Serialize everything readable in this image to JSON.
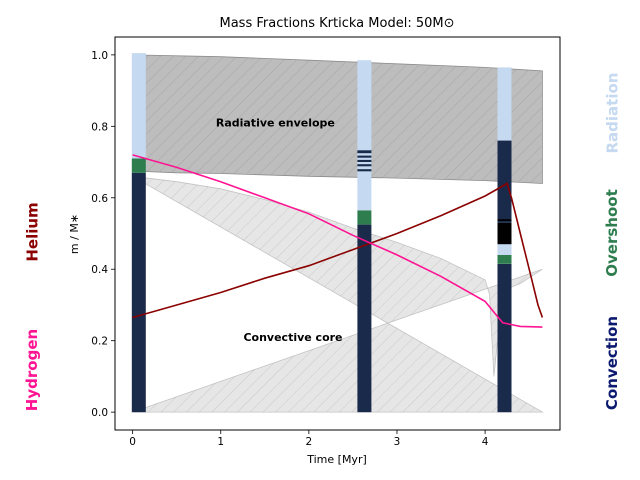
{
  "chart_data": {
    "type": "area",
    "title": "Mass Fractions Krticka Model: 50M⊙",
    "xlabel": "Time [Myr]",
    "ylabel": "m / M∗",
    "xlim": [
      -0.2,
      4.85
    ],
    "ylim": [
      -0.05,
      1.05
    ],
    "xticks": [
      "0",
      "1",
      "2",
      "3",
      "4"
    ],
    "yticks": [
      "0.0",
      "0.2",
      "0.4",
      "0.6",
      "0.8",
      "1.0"
    ],
    "grid": false,
    "region_labels": [
      "Radiative envelope",
      "Convective core"
    ],
    "side_labels": {
      "left": [
        "Helium",
        "Hydrogen"
      ],
      "right": [
        "Radiation",
        "Overshoot",
        "Convection"
      ]
    },
    "colors": {
      "helium": "#8b0000",
      "hydrogen": "#ff1493",
      "radiation": "#c5d9f1",
      "overshoot": "#2e7d4f",
      "convection": "#1a2a4a",
      "envelope_fill": "#bdbdbd",
      "core_fill": "#e6e6e6"
    },
    "envelope_top": {
      "x": [
        0.0,
        1.0,
        2.0,
        3.0,
        4.0,
        4.65
      ],
      "y": [
        1.0,
        0.995,
        0.985,
        0.975,
        0.965,
        0.955
      ]
    },
    "envelope_bottom": {
      "x": [
        0.0,
        0.5,
        1.0,
        2.0,
        3.0,
        4.0,
        4.65
      ],
      "y": [
        0.675,
        0.67,
        0.668,
        0.66,
        0.655,
        0.648,
        0.64
      ]
    },
    "core_boundary": {
      "x": [
        0.0,
        0.5,
        1.0,
        1.5,
        2.0,
        2.5,
        3.0,
        3.5,
        4.0,
        4.05,
        4.1,
        4.2,
        4.4,
        4.65
      ],
      "y": [
        0.66,
        0.645,
        0.625,
        0.595,
        0.56,
        0.515,
        0.475,
        0.43,
        0.37,
        0.33,
        0.1,
        0.34,
        0.36,
        0.4
      ]
    },
    "series": [
      {
        "name": "Helium",
        "x": [
          0.0,
          0.5,
          1.0,
          1.5,
          2.0,
          2.5,
          3.0,
          3.5,
          4.0,
          4.25,
          4.3,
          4.4,
          4.5,
          4.6,
          4.65
        ],
        "y": [
          0.265,
          0.3,
          0.335,
          0.375,
          0.41,
          0.455,
          0.5,
          0.55,
          0.605,
          0.64,
          0.6,
          0.5,
          0.4,
          0.3,
          0.265
        ]
      },
      {
        "name": "Hydrogen",
        "x": [
          0.0,
          0.5,
          1.0,
          1.5,
          2.0,
          2.5,
          3.0,
          3.5,
          4.0,
          4.1,
          4.2,
          4.3,
          4.4,
          4.65
        ],
        "y": [
          0.72,
          0.685,
          0.645,
          0.6,
          0.555,
          0.495,
          0.44,
          0.38,
          0.31,
          0.28,
          0.25,
          0.245,
          0.24,
          0.238
        ]
      }
    ],
    "columns": [
      {
        "time": 0.07,
        "segments": [
          {
            "from": 0.0,
            "to": 0.67,
            "kind": "convection"
          },
          {
            "from": 0.67,
            "to": 0.71,
            "kind": "overshoot"
          },
          {
            "from": 0.71,
            "to": 1.005,
            "kind": "radiation"
          }
        ]
      },
      {
        "time": 2.63,
        "segments": [
          {
            "from": 0.0,
            "to": 0.525,
            "kind": "convection"
          },
          {
            "from": 0.525,
            "to": 0.565,
            "kind": "overshoot"
          },
          {
            "from": 0.565,
            "to": 0.985,
            "kind": "radiation"
          },
          {
            "from": 0.725,
            "to": 0.733,
            "kind": "convection"
          },
          {
            "from": 0.712,
            "to": 0.718,
            "kind": "convection"
          },
          {
            "from": 0.7,
            "to": 0.706,
            "kind": "convection"
          },
          {
            "from": 0.688,
            "to": 0.694,
            "kind": "convection"
          },
          {
            "from": 0.674,
            "to": 0.68,
            "kind": "convection"
          }
        ]
      },
      {
        "time": 4.22,
        "segments": [
          {
            "from": 0.0,
            "to": 0.415,
            "kind": "convection"
          },
          {
            "from": 0.415,
            "to": 0.44,
            "kind": "overshoot"
          },
          {
            "from": 0.44,
            "to": 0.965,
            "kind": "radiation"
          },
          {
            "from": 0.53,
            "to": 0.76,
            "kind": "convection"
          },
          {
            "from": 0.47,
            "to": 0.53,
            "kind": "black"
          },
          {
            "from": 0.535,
            "to": 0.54,
            "kind": "black"
          }
        ]
      }
    ]
  }
}
